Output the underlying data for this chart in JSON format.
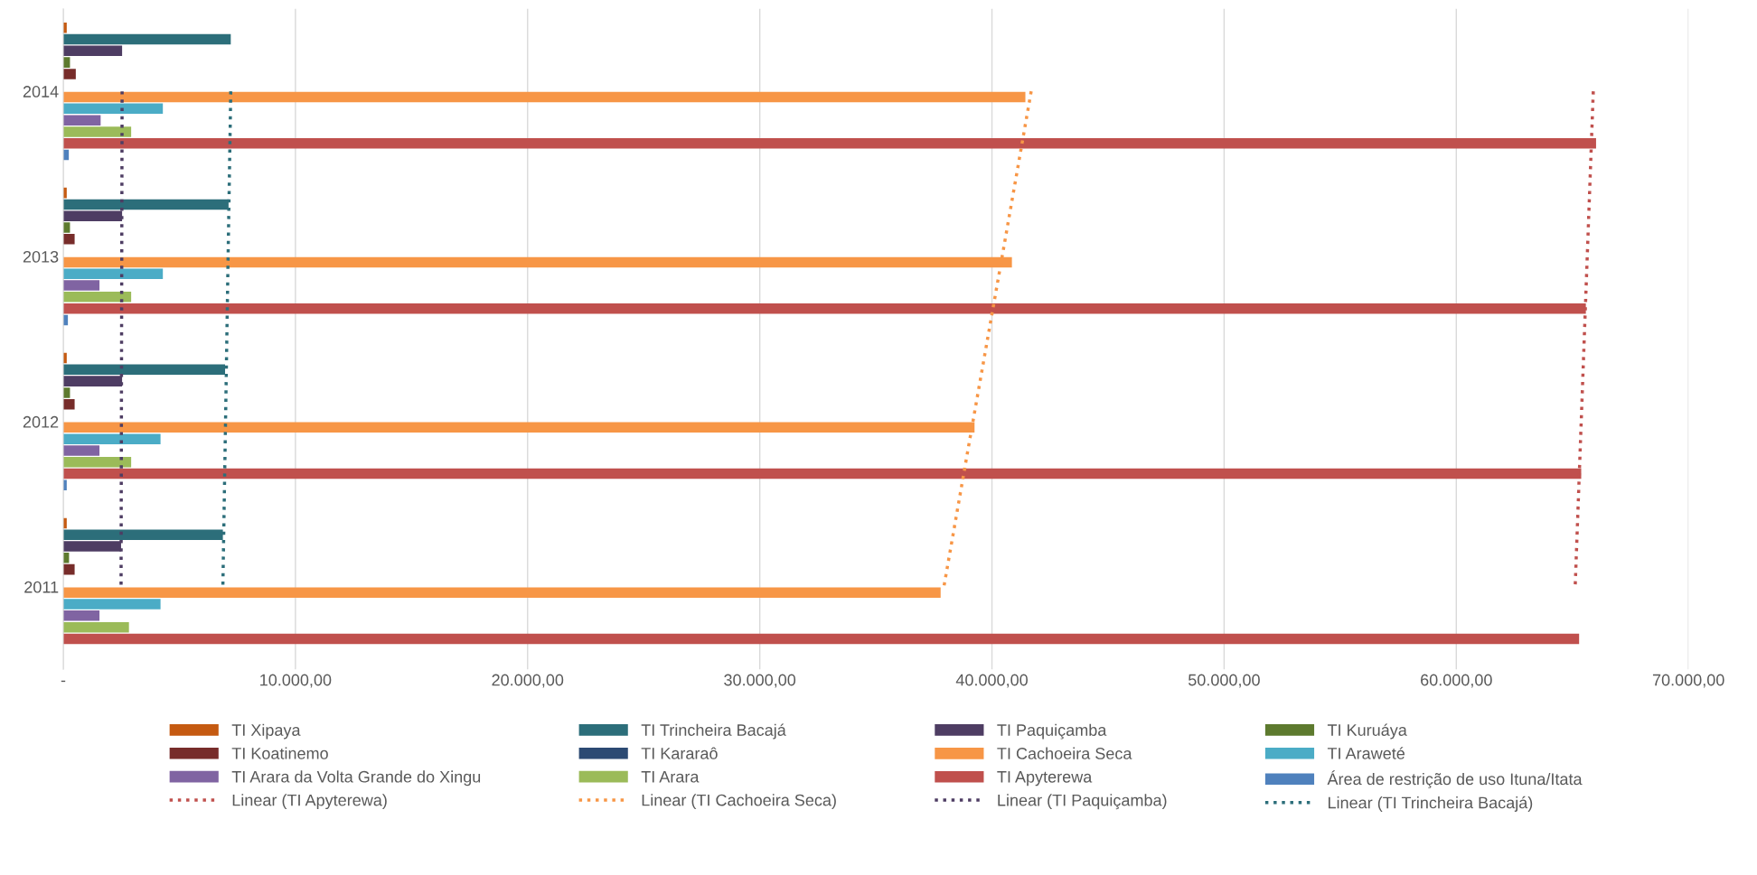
{
  "chart_data": {
    "type": "bar",
    "orientation": "horizontal",
    "categories": [
      "2014",
      "2013",
      "2012",
      "2011"
    ],
    "xlim": [
      0,
      70000
    ],
    "xticks": [
      {
        "value": 0,
        "label": "-"
      },
      {
        "value": 10000,
        "label": "10.000,00"
      },
      {
        "value": 20000,
        "label": "20.000,00"
      },
      {
        "value": 30000,
        "label": "30.000,00"
      },
      {
        "value": 40000,
        "label": "40.000,00"
      },
      {
        "value": 50000,
        "label": "50.000,00"
      },
      {
        "value": 60000,
        "label": "60.000,00"
      },
      {
        "value": 70000,
        "label": "70.000,00"
      }
    ],
    "grid": "x",
    "legend": "bottom",
    "series": [
      {
        "name": "TI Xipaya",
        "color": "#c55a11",
        "values": [
          150,
          150,
          150,
          150
        ]
      },
      {
        "name": "TI Trincheira Bacajá",
        "color": "#2c6e7a",
        "values": [
          7215,
          7120,
          6970,
          6875
        ]
      },
      {
        "name": "TI Paquiçamba",
        "color": "#4e3d63",
        "values": [
          2535,
          2535,
          2535,
          2490
        ]
      },
      {
        "name": "TI Kuruáya",
        "color": "#5d7a2e",
        "values": [
          290,
          290,
          290,
          250
        ]
      },
      {
        "name": "TI Koatinemo",
        "color": "#772c2a",
        "values": [
          540,
          490,
          490,
          490
        ]
      },
      {
        "name": "TI Kararaô",
        "color": "#2c4a73",
        "values": [
          0,
          0,
          0,
          0
        ]
      },
      {
        "name": "TI Cachoeira Seca",
        "color": "#f79646",
        "values": [
          41440,
          40860,
          39250,
          37790
        ]
      },
      {
        "name": "TI Araweté",
        "color": "#4bacc6",
        "values": [
          4290,
          4290,
          4190,
          4190
        ]
      },
      {
        "name": "TI Arara da Volta Grande do Xingu",
        "color": "#8064a2",
        "values": [
          1610,
          1560,
          1560,
          1560
        ]
      },
      {
        "name": "TI Arara",
        "color": "#9bbb59",
        "values": [
          2925,
          2925,
          2925,
          2830
        ]
      },
      {
        "name": "TI Apyterewa",
        "color": "#c0504d",
        "values": [
          66020,
          65580,
          65380,
          65290
        ]
      },
      {
        "name": "Área de restrição de uso Ituna/Itata",
        "color": "#4f81bd",
        "values": [
          240,
          200,
          150,
          null
        ]
      },
      {
        "name": "Linear (TI Apyterewa)",
        "type": "line",
        "line_style": "dotted",
        "color": "#c0504d",
        "values": [
          65900,
          65640,
          65380,
          65120
        ]
      },
      {
        "name": "Linear (TI Cachoeira Seca)",
        "type": "line",
        "line_style": "dotted",
        "color": "#f79646",
        "values": [
          41690,
          40440,
          39180,
          37930
        ]
      },
      {
        "name": "Linear (TI Paquiçamba)",
        "type": "line",
        "line_style": "dotted",
        "color": "#4e3d63",
        "values": [
          2535,
          2520,
          2505,
          2490
        ]
      },
      {
        "name": "Linear (TI Trincheira Bacajá)",
        "type": "line",
        "line_style": "dotted",
        "color": "#2c6e7a",
        "values": [
          7215,
          7100,
          6990,
          6875
        ]
      }
    ]
  }
}
